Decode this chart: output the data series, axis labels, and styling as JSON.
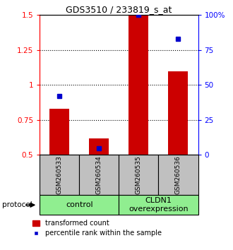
{
  "title": "GDS3510 / 233819_s_at",
  "samples": [
    "GSM260533",
    "GSM260534",
    "GSM260535",
    "GSM260536"
  ],
  "red_values": [
    0.83,
    0.62,
    1.5,
    1.1
  ],
  "blue_values": [
    42,
    5,
    100,
    83
  ],
  "ylim_left": [
    0.5,
    1.5
  ],
  "ylim_right": [
    0,
    100
  ],
  "yticks_left": [
    0.5,
    0.75,
    1.0,
    1.25,
    1.5
  ],
  "ytick_labels_left": [
    "0.5",
    "0.75",
    "1",
    "1.25",
    "1.5"
  ],
  "yticks_right": [
    0,
    25,
    50,
    75,
    100
  ],
  "ytick_labels_right": [
    "0",
    "25",
    "50",
    "75",
    "100%"
  ],
  "grid_values": [
    0.75,
    1.0,
    1.25
  ],
  "group1_label": "control",
  "group2_label": "CLDN1\noverexpression",
  "group_color": "#90EE90",
  "bar_color": "#CC0000",
  "dot_color": "#0000CC",
  "bar_width": 0.5,
  "sample_box_color": "#C0C0C0",
  "legend_red_label": "transformed count",
  "legend_blue_label": "percentile rank within the sample",
  "protocol_label": "protocol"
}
